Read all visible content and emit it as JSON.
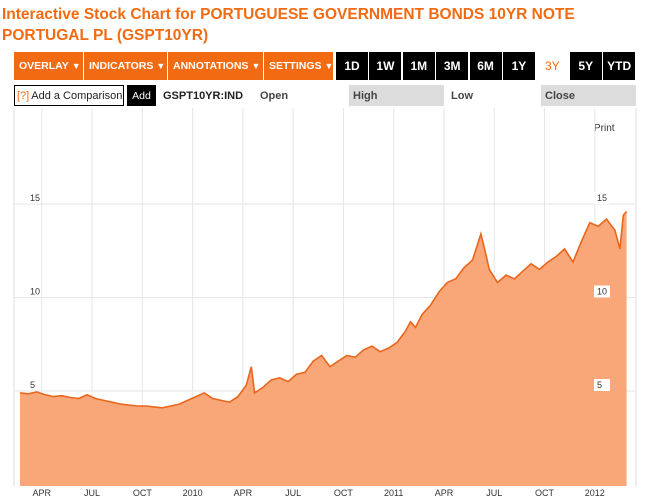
{
  "title": "Interactive Stock Chart for PORTUGUESE GOVERNMENT BONDS 10YR NOTE PORTUGAL PL (GSPT10YR)",
  "toolbar": {
    "menus": [
      {
        "label": "OVERLAY",
        "caret": "▼"
      },
      {
        "label": "INDICATORS",
        "caret": "▼"
      },
      {
        "label": "ANNOTATIONS",
        "caret": "▼"
      },
      {
        "label": "SETTINGS",
        "caret": "▼"
      }
    ],
    "ranges": [
      "1D",
      "1W",
      "1M",
      "3M",
      "6M",
      "1Y",
      "3Y",
      "5Y",
      "YTD"
    ],
    "active_range": "3Y"
  },
  "compare": {
    "icon": "[?]",
    "label": "Add a Comparison",
    "add_label": "Add"
  },
  "quote": {
    "ticker": "GSPT10YR:IND",
    "open_label": "Open",
    "high_label": "High",
    "low_label": "Low",
    "close_label": "Close"
  },
  "print_label": "Print",
  "colors": {
    "accent": "#f26a12",
    "area_fill": "#f9a679",
    "line": "#e9661c"
  },
  "chart_data": {
    "type": "area",
    "title": "",
    "xlabel": "",
    "ylabel": "",
    "ylim": [
      0,
      16.5
    ],
    "y_ticks": [
      5,
      10,
      15
    ],
    "x_tick_labels": [
      "APR",
      "JUL",
      "OCT",
      "2010",
      "APR",
      "JUL",
      "OCT",
      "2011",
      "APR",
      "JUL",
      "OCT",
      "2012"
    ],
    "grid": true,
    "x_months": [
      0,
      0.5,
      1,
      1.5,
      2,
      2.5,
      3,
      3.5,
      4,
      4.5,
      5,
      5.5,
      6,
      6.5,
      7,
      7.5,
      8,
      8.5,
      9,
      9.5,
      10,
      10.5,
      11,
      11.5,
      12,
      12.5,
      13,
      13.5,
      13.8,
      14,
      14.5,
      15,
      15.5,
      16,
      16.5,
      17,
      17.5,
      18,
      18.5,
      19,
      19.5,
      20,
      20.5,
      21,
      21.5,
      22,
      22.5,
      23,
      23.3,
      23.6,
      24,
      24.5,
      25,
      25.5,
      26,
      26.5,
      27,
      27.5,
      27.8,
      28,
      28.5,
      29,
      29.5,
      30,
      30.5,
      31,
      31.5,
      32,
      32.5,
      33,
      33.5,
      34,
      34.5,
      35,
      35.5,
      35.8,
      36,
      36.2
    ],
    "values": [
      4.9,
      4.85,
      4.95,
      4.8,
      4.7,
      4.75,
      4.65,
      4.6,
      4.8,
      4.6,
      4.5,
      4.4,
      4.3,
      4.25,
      4.2,
      4.2,
      4.15,
      4.1,
      4.2,
      4.3,
      4.5,
      4.7,
      4.9,
      4.6,
      4.5,
      4.4,
      4.7,
      5.3,
      6.3,
      4.9,
      5.2,
      5.6,
      5.7,
      5.5,
      5.9,
      6.0,
      6.6,
      6.9,
      6.3,
      6.6,
      6.9,
      6.8,
      7.2,
      7.4,
      7.1,
      7.3,
      7.6,
      8.2,
      8.7,
      8.4,
      9.1,
      9.6,
      10.3,
      10.8,
      11.0,
      11.6,
      12.0,
      13.4,
      12.3,
      11.5,
      10.8,
      11.2,
      11.0,
      11.4,
      11.8,
      11.5,
      11.9,
      12.2,
      12.6,
      11.9,
      13.0,
      14.0,
      13.8,
      14.2,
      13.6,
      12.6,
      14.4,
      14.6
    ]
  }
}
